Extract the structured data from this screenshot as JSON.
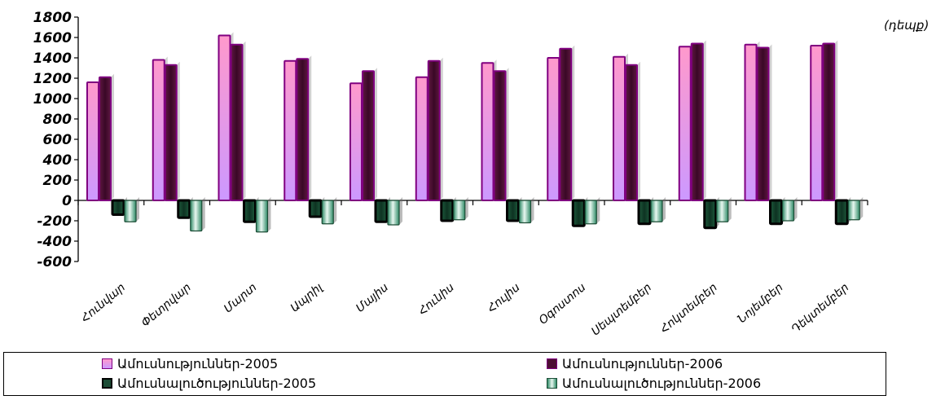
{
  "unit_label": "(դեպք)",
  "chart_data": {
    "type": "bar",
    "categories": [
      "Հունվար",
      "Փետրվար",
      "Մարտ",
      "Ապրիլ",
      "Մայիս",
      "Հունիս",
      "Հուլիս",
      "Օգոստոս",
      "Սեպտեմբեր",
      "Հոկտեմբեր",
      "Նոյեմբեր",
      "Դեկտեմբեր"
    ],
    "series": [
      {
        "name": "Ամուսնություններ-2005",
        "values": [
          1160,
          1380,
          1620,
          1370,
          1150,
          1210,
          1350,
          1400,
          1410,
          1510,
          1530,
          1520
        ],
        "color": "#ff99cc"
      },
      {
        "name": "Ամուսնություններ-2006",
        "values": [
          1210,
          1330,
          1530,
          1390,
          1270,
          1370,
          1270,
          1490,
          1330,
          1540,
          1500,
          1540
        ],
        "color": "#4d0f33"
      },
      {
        "name": "Ամուսնալուծություններ-2005",
        "values": [
          -140,
          -170,
          -210,
          -160,
          -210,
          -200,
          -200,
          -250,
          -230,
          -270,
          -230,
          -230
        ],
        "color": "#1c4d36"
      },
      {
        "name": "Ամուսնալուծություններ-2006",
        "values": [
          -210,
          -300,
          -310,
          -230,
          -240,
          -190,
          -220,
          -230,
          -210,
          -210,
          -200,
          -190
        ],
        "color": "#bfe8d8"
      }
    ],
    "ylim": [
      -600,
      1800
    ],
    "yticks": [
      "1800",
      "1600",
      "1400",
      "1200",
      "1000",
      "800",
      "600",
      "400",
      "200",
      "0",
      "-200",
      "-400",
      "-600"
    ],
    "grid": false,
    "legend": "bottom"
  }
}
